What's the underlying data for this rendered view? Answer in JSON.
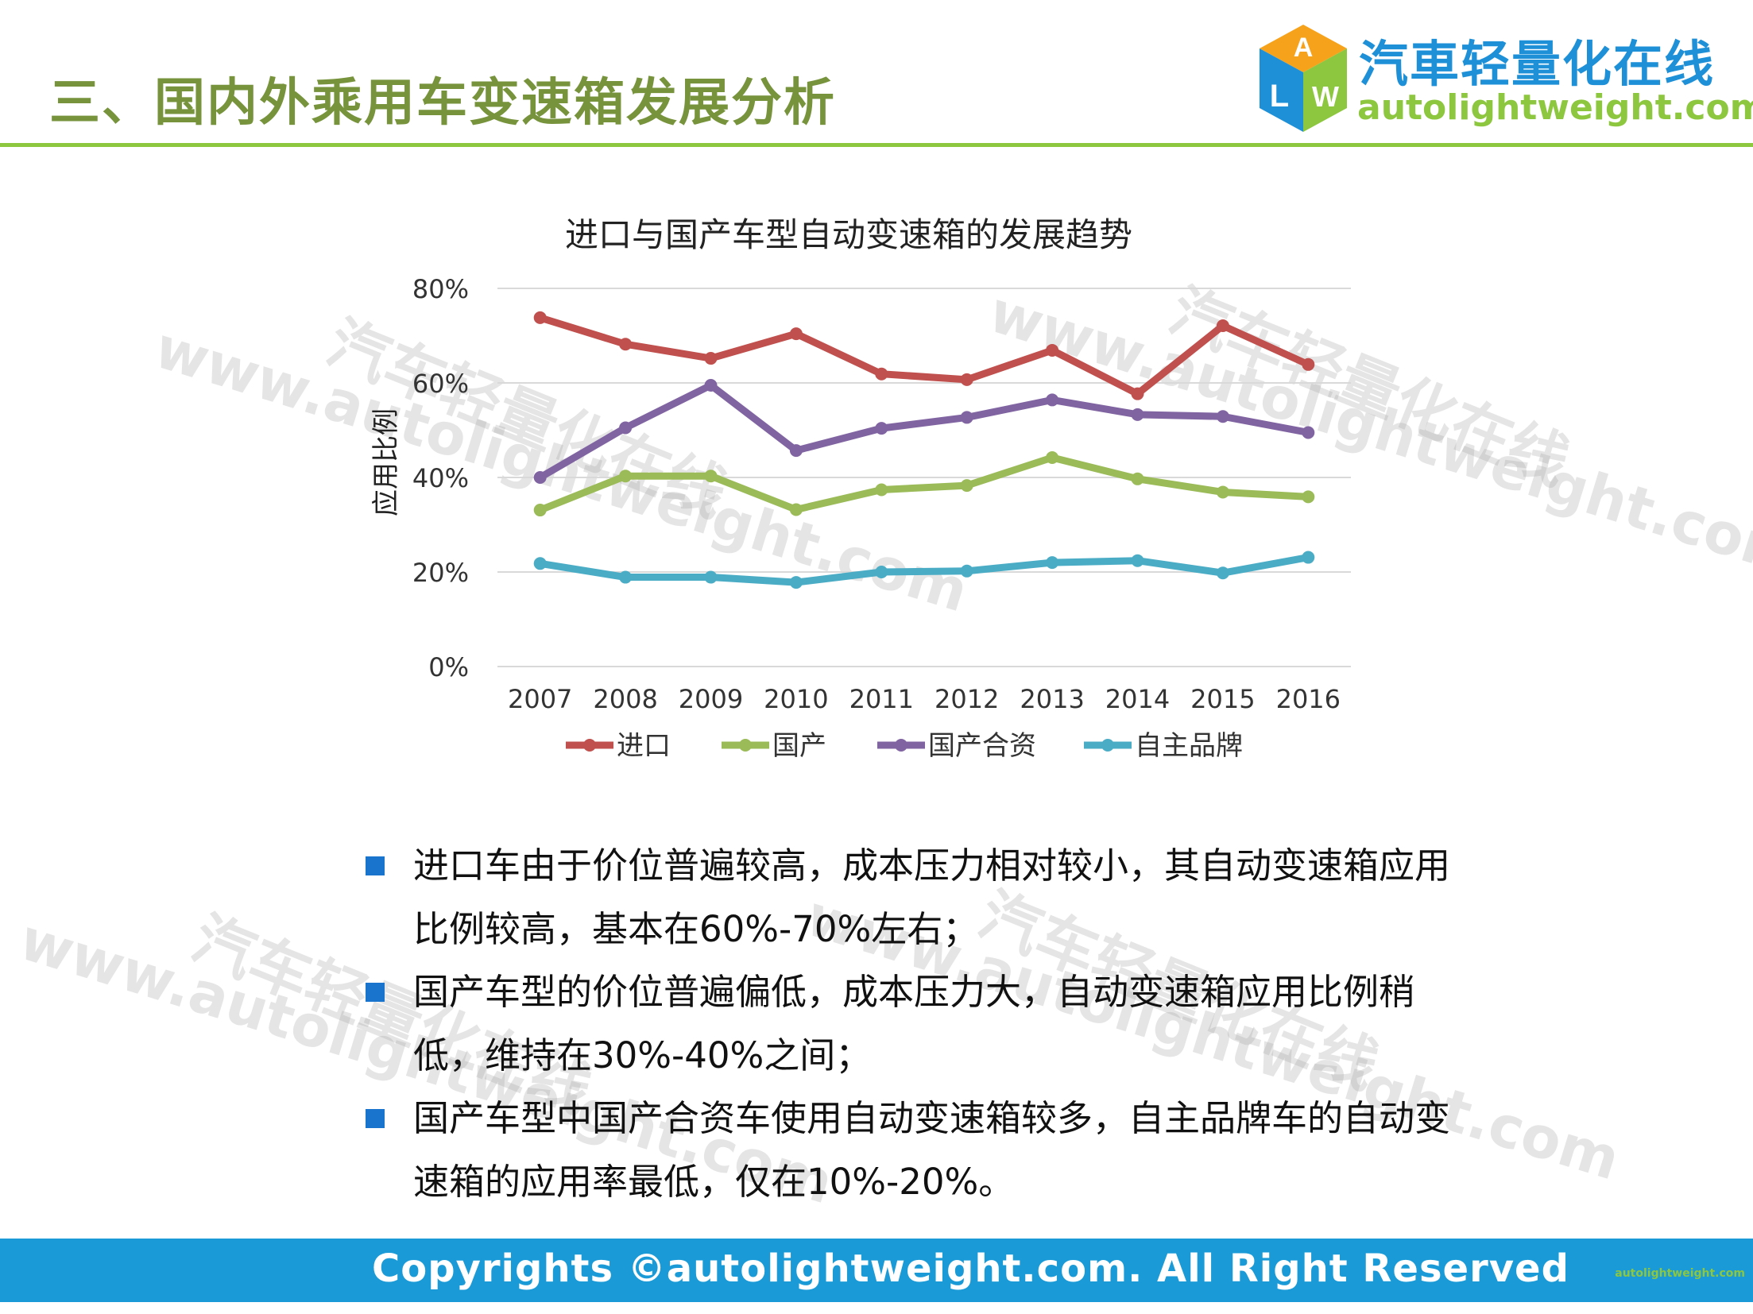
{
  "header": {
    "title": "三、国内外乘用车变速箱发展分析",
    "logo_cn": "汽車轻量化在线",
    "logo_en": "autolightweight.com",
    "logo_mark": "ALW"
  },
  "watermark": {
    "cn": "汽车轻量化在线",
    "en": "www.autolightweight.com"
  },
  "chart_data": {
    "type": "line",
    "title": "进口与国产车型自动变速箱的发展趋势",
    "xlabel": "",
    "ylabel": "应用比例",
    "categories": [
      "2007",
      "2008",
      "2009",
      "2010",
      "2011",
      "2012",
      "2013",
      "2014",
      "2015",
      "2016"
    ],
    "ylim": [
      0,
      80
    ],
    "yticks": [
      "0%",
      "20%",
      "40%",
      "60%",
      "80%"
    ],
    "ytick_values": [
      0,
      20,
      40,
      60,
      80
    ],
    "grid": true,
    "legend_position": "bottom",
    "series": [
      {
        "name": "进口",
        "color": "#c0504d",
        "values": [
          73.8,
          68.2,
          65.2,
          70.4,
          61.9,
          60.7,
          66.9,
          57.7,
          72.1,
          63.9
        ]
      },
      {
        "name": "国产",
        "color": "#9bbb59",
        "values": [
          33.1,
          40.3,
          40.3,
          33.2,
          37.4,
          38.3,
          44.2,
          39.7,
          36.9,
          35.9
        ]
      },
      {
        "name": "国产合资",
        "color": "#8064a2",
        "values": [
          40.0,
          50.5,
          59.5,
          45.7,
          50.4,
          52.7,
          56.4,
          53.3,
          52.9,
          49.5
        ]
      },
      {
        "name": "自主品牌",
        "color": "#4bacc6",
        "values": [
          21.8,
          18.9,
          18.9,
          17.8,
          20.0,
          20.2,
          22.0,
          22.4,
          19.8,
          23.1
        ]
      }
    ]
  },
  "bullets": [
    "进口车由于价位普遍较高，成本压力相对较小，其自动变速箱应用比例较高，基本在60%-70%左右；",
    "国产车型的价位普遍偏低，成本压力大，自动变速箱应用比例稍低，维持在30%-40%之间；",
    "国产车型中国产合资车使用自动变速箱较多，自主品牌车的自动变速箱的应用率最低，仅在10%-20%。"
  ],
  "footer": {
    "copyright": "Copyrights ©autolightweight.com. All Right Reserved",
    "small_logo": "autolightweight.com"
  },
  "colors": {
    "accent_green": "#77933c",
    "rule_green": "#8dc63f",
    "footer_blue": "#1a9ad6",
    "bullet_blue": "#1874cd"
  }
}
